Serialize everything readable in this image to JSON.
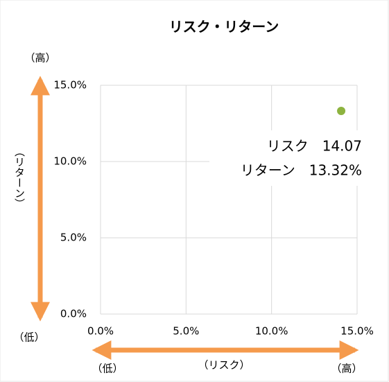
{
  "chart_data": {
    "type": "scatter",
    "title": "リスク・リターン",
    "x_label": "（リスク）",
    "y_label": "（リターン）",
    "y_high": "（高）",
    "y_low": "（低）",
    "x_low": "（低）",
    "x_high": "（高）",
    "series": [
      {
        "color": "#8db33f",
        "x": [
          14.07
        ],
        "values": [
          13.32
        ]
      }
    ],
    "annotations": [
      "リスク　14.07",
      "リターン　13.32%"
    ],
    "xlim": [
      0,
      15
    ],
    "ylim": [
      0,
      15
    ],
    "xticks": [
      {
        "value": 0,
        "label": "0.0%"
      },
      {
        "value": 5,
        "label": "5.0%"
      },
      {
        "value": 10,
        "label": "10.0%"
      },
      {
        "value": 15,
        "label": "15.0%"
      }
    ],
    "yticks": [
      {
        "value": 0,
        "label": "0.0%"
      },
      {
        "value": 5,
        "label": "5.0%"
      },
      {
        "value": 10,
        "label": "10.0%"
      },
      {
        "value": 15,
        "label": "15.0%"
      }
    ],
    "grid": true
  }
}
